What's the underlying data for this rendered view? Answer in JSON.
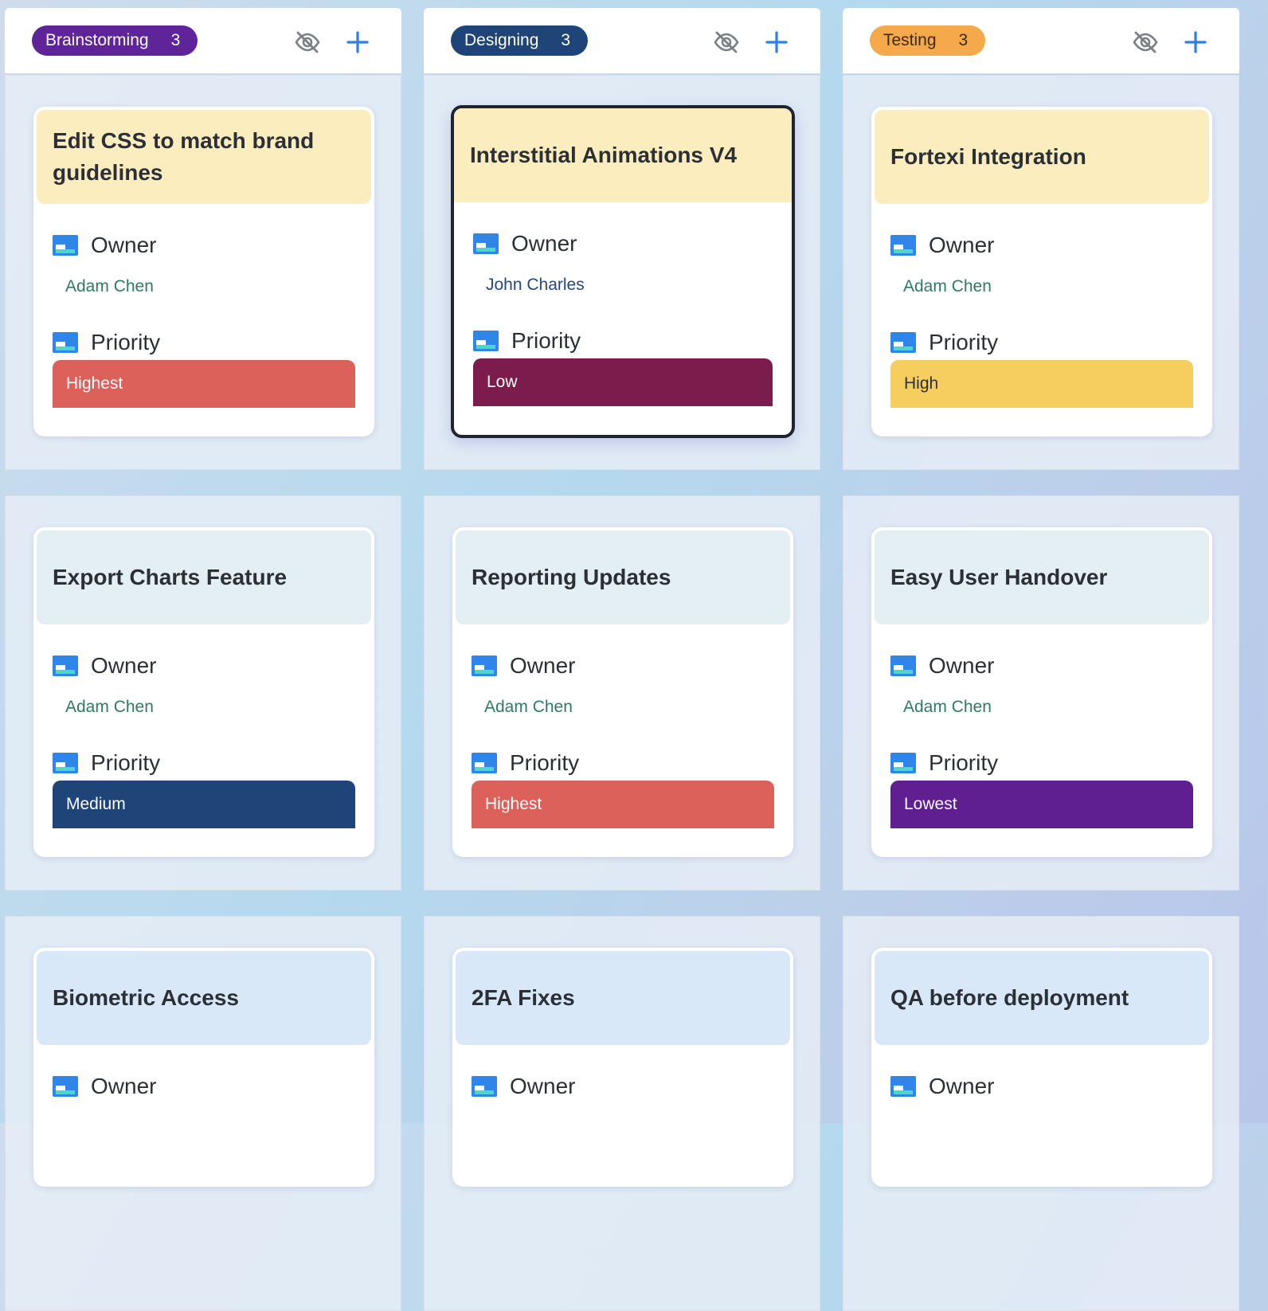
{
  "columns": [
    {
      "name": "Brainstorming",
      "count": "3",
      "pill_bg": "#5f249a",
      "pill_fg": "#ffffff"
    },
    {
      "name": "Designing",
      "count": "3",
      "pill_bg": "#1f4578",
      "pill_fg": "#ffffff"
    },
    {
      "name": "Testing",
      "count": "3",
      "pill_bg": "#f5a94b",
      "pill_fg": "#3a2a10"
    }
  ],
  "icons": {
    "hide": "eye-slash-icon",
    "add": "plus-icon",
    "field": "field-card-icon"
  },
  "labels": {
    "owner": "Owner",
    "priority": "Priority"
  },
  "colors": {
    "accent": "#2e7ee6",
    "owner_text": "#2e7a62",
    "owner_text_selected": "#24477f"
  },
  "rows": [
    {
      "title_bg": "#fcedbf",
      "cards": [
        {
          "title": "Edit CSS to match brand guidelines",
          "owner": "Adam Chen",
          "priority": "Highest",
          "priority_bg": "#dd615b",
          "priority_fg": "#ffffff",
          "selected": false
        },
        {
          "title": "Interstitial Animations V4",
          "owner": "John Charles",
          "priority": "Low",
          "priority_bg": "#7b1c4c",
          "priority_fg": "#ffffff",
          "selected": true
        },
        {
          "title": "Fortexi Integration",
          "owner": "Adam Chen",
          "priority": "High",
          "priority_bg": "#f6cd5f",
          "priority_fg": "#2b2f36",
          "selected": false
        }
      ]
    },
    {
      "title_bg": "#e3eff3",
      "cards": [
        {
          "title": "Export Charts Feature",
          "owner": "Adam Chen",
          "priority": "Medium",
          "priority_bg": "#1f4578",
          "priority_fg": "#ffffff",
          "selected": false
        },
        {
          "title": "Reporting Updates",
          "owner": "Adam Chen",
          "priority": "Highest",
          "priority_bg": "#dd615b",
          "priority_fg": "#ffffff",
          "selected": false
        },
        {
          "title": "Easy User Handover",
          "owner": "Adam Chen",
          "priority": "Lowest",
          "priority_bg": "#5f1f91",
          "priority_fg": "#ffffff",
          "selected": false
        }
      ]
    },
    {
      "title_bg": "#d9e8f8",
      "cards": [
        {
          "title": "Biometric Access"
        },
        {
          "title": "2FA Fixes"
        },
        {
          "title": "QA before deployment"
        }
      ]
    }
  ]
}
